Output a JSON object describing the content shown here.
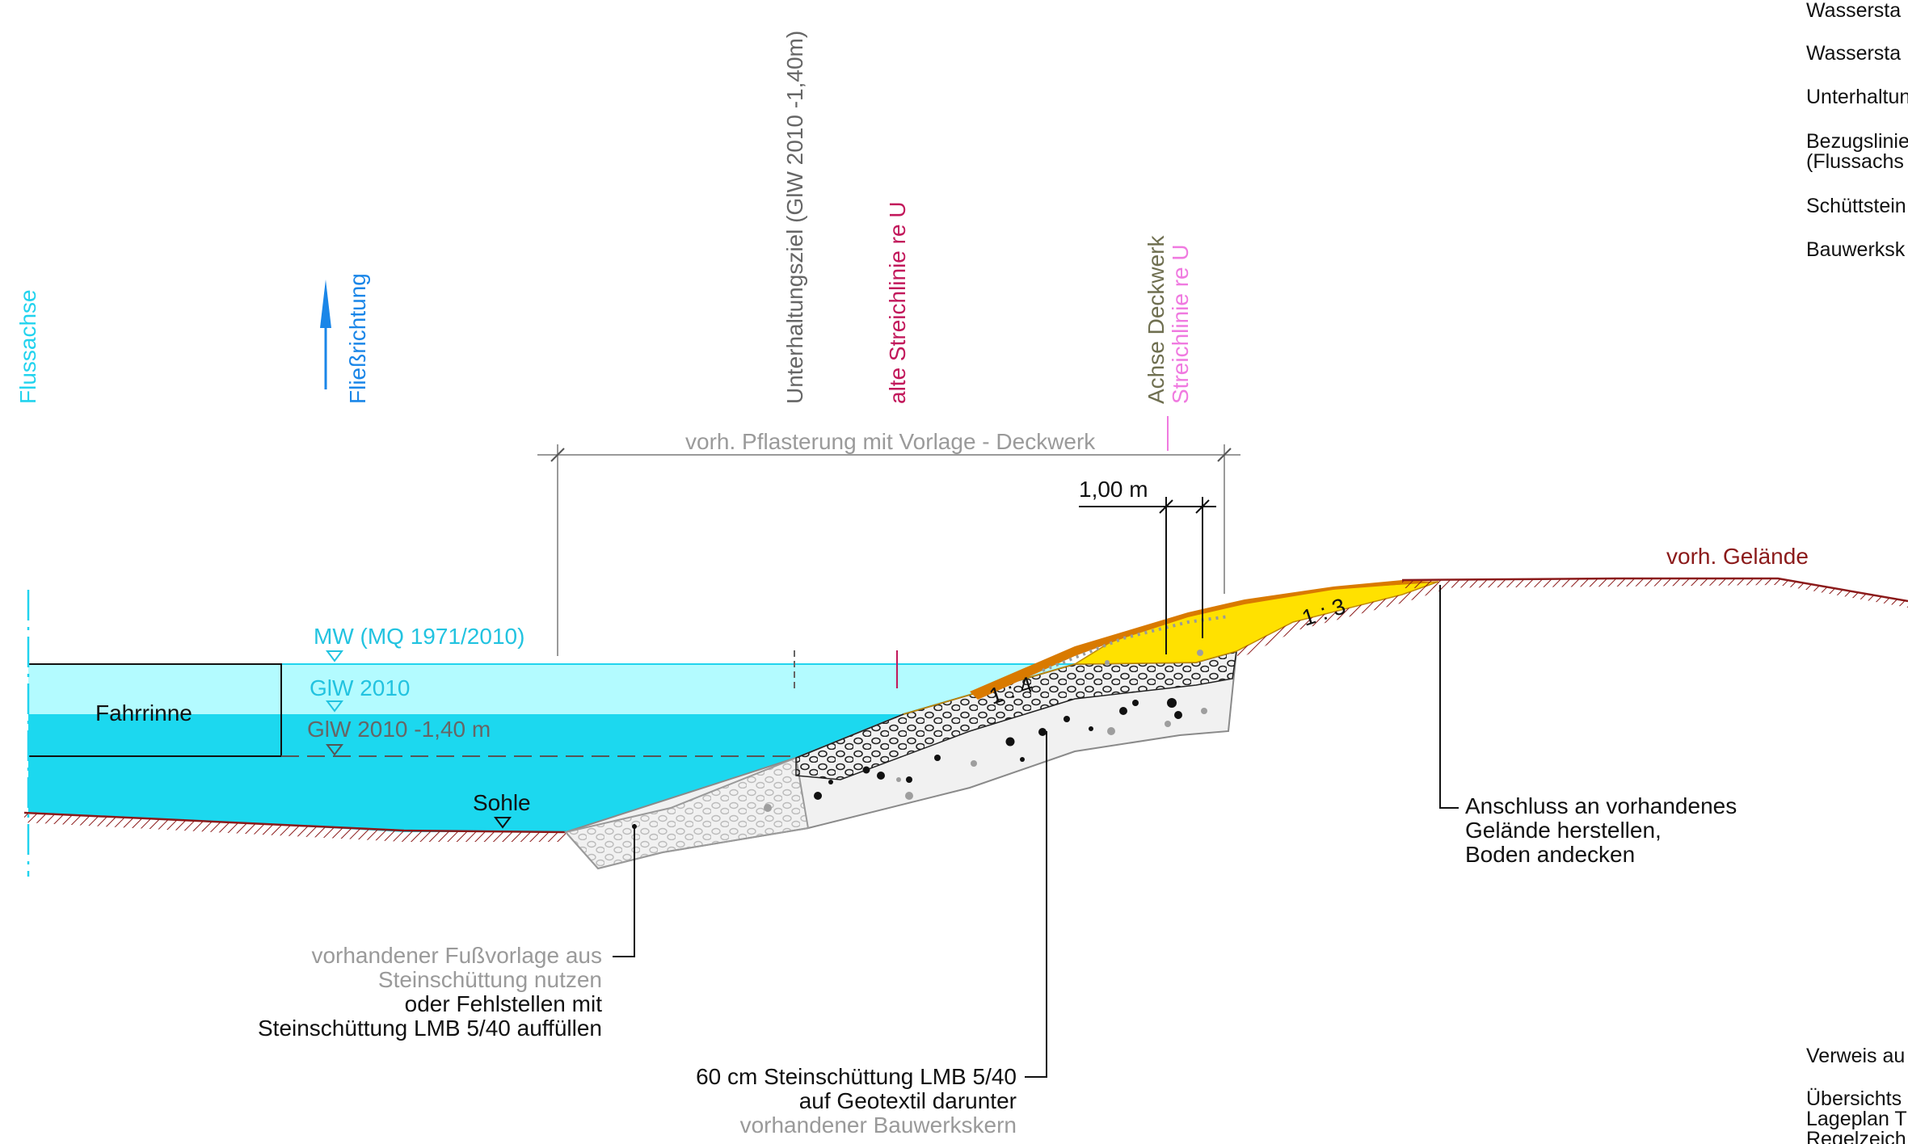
{
  "title_fragment": "",
  "colors": {
    "river_axis": "#22d3ee",
    "water_upper": "#b3fbff",
    "water_lower": "#1cd8ef",
    "flow": "#1a86e8",
    "maintenance": "#666666",
    "old_line": "#c2185b",
    "deck_axis": "#6f6f50",
    "new_line": "#f07ae0",
    "terrain": "#8b1a1a",
    "fill_yellow": "#ffe100",
    "fill_orange": "#d97a00",
    "gray_text": "#9a9a9a"
  },
  "labels": {
    "flussachse": "Flussachse",
    "fliessrichtung": "Fließrichtung",
    "unterhaltungsziel": "Unterhaltungsziel (GlW 2010 -1,40m)",
    "alte_streichlinie": "alte Streichlinie re U",
    "achse_deckwerk": "Achse Deckwerk",
    "streichlinie": "Streichlinie re U",
    "pflasterung": "vorh. Pflasterung mit Vorlage  -  Deckwerk",
    "dim_1m": "1,00 m",
    "vorh_gelaende": "vorh. Gelände",
    "mw": "MW (MQ 1971/2010)",
    "glw": "GlW 2010",
    "glw_minus": "GlW 2010  -1,40 m",
    "fahrrinne": "Fahrrinne",
    "sohle": "Sohle",
    "slope_14": "1 : 4",
    "slope_13": "1 : 3"
  },
  "notes": {
    "fussvorlage": [
      "vorhandener Fußvorlage aus",
      "Steinschüttung nutzen",
      "oder Fehlstellen mit",
      "Steinschüttung LMB 5/40 auffüllen"
    ],
    "steinschuettung": [
      "60 cm Steinschüttung LMB 5/40",
      "auf Geotextil darunter",
      "vorhandener Bauwerkskern"
    ],
    "anschluss": [
      "Anschluss an vorhandenes",
      "Gelände herstellen,",
      "Boden andecken"
    ]
  },
  "legend_top": [
    "Wassersta",
    "Wassersta",
    "Unterhaltun",
    "Bezugslinie",
    "(Flussachs",
    "Schüttstein",
    "Bauwerksk"
  ],
  "legend_bottom": [
    "Verweis au",
    "Übersichts",
    "Lageplan T",
    "Regelzeich"
  ]
}
